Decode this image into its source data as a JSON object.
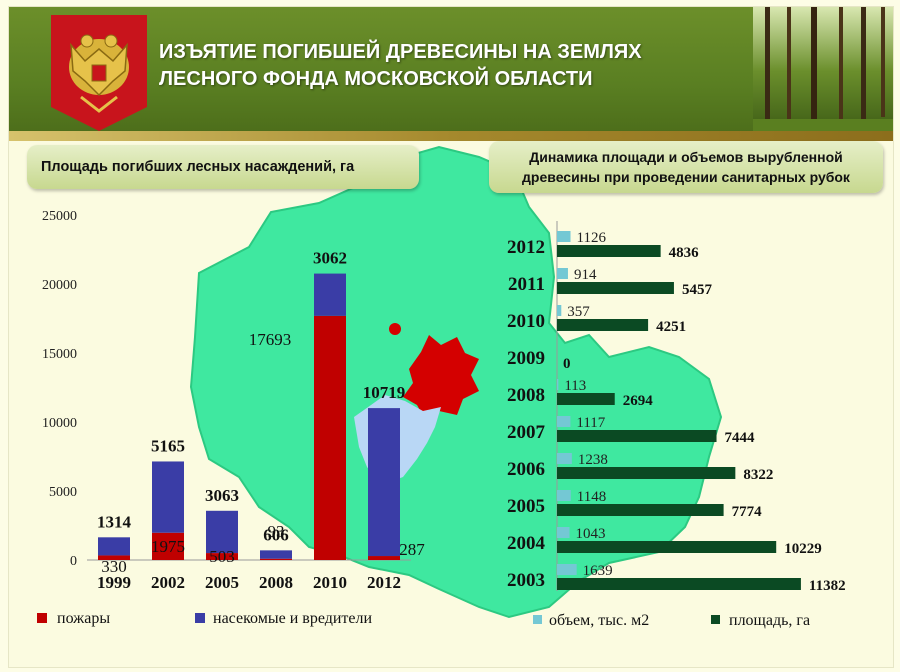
{
  "header": {
    "title_line1": "ИЗЪЯТИЕ ПОГИБШЕЙ ДРЕВЕСИНЫ НА ЗЕМЛЯХ",
    "title_line2": "ЛЕСНОГО ФОНДА МОСКОВСКОЙ ОБЛАСТИ",
    "emblem_icon": "russian-coat-of-arms-icon",
    "photo": "forest-photo"
  },
  "colors": {
    "fires": "#c00000",
    "insects": "#3a3da6",
    "volume": "#74c8d4",
    "area": "#0b4a23",
    "map_fill": "#3fe8a0",
    "moscow_red": "#d40000",
    "moscow_blue": "#b9d7f5"
  },
  "chart_data": [
    {
      "type": "bar",
      "title": "Площадь погибших лесных насаждений, га",
      "categories": [
        "1999",
        "2002",
        "2005",
        "2008",
        "2010",
        "2012"
      ],
      "stacked": true,
      "series": [
        {
          "name": "пожары",
          "values": [
            330,
            1975,
            503,
            93,
            17693,
            287
          ]
        },
        {
          "name": "насекомые и вредители",
          "values": [
            1314,
            5165,
            3063,
            606,
            3062,
            10719
          ]
        }
      ],
      "ylim": [
        0,
        25000
      ],
      "yticks": [
        "0",
        "5000",
        "10000",
        "15000",
        "20000",
        "25000"
      ],
      "legend": "bottom",
      "grid": false
    },
    {
      "type": "bar",
      "orientation": "horizontal",
      "title": "Динамика площади и объемов вырубленной древесины при проведении санитарных рубок",
      "categories": [
        "2012",
        "2011",
        "2010",
        "2009",
        "2008",
        "2007",
        "2006",
        "2005",
        "2004",
        "2003"
      ],
      "series": [
        {
          "name": "объем, тыс. м2",
          "values": [
            1126,
            914,
            357,
            null,
            113,
            1117,
            1238,
            1148,
            1043,
            1639
          ]
        },
        {
          "name": "площадь, га",
          "values": [
            4836,
            5457,
            4251,
            0,
            2694,
            7444,
            8322,
            7774,
            10229,
            11382
          ]
        }
      ],
      "value_labels": {
        "volume": [
          "1126",
          "914",
          "357",
          "",
          "113",
          "1117",
          "1238",
          "1148",
          "1043",
          "1639"
        ],
        "area": [
          "4836",
          "5457",
          "4251",
          "0",
          "2694",
          "7444",
          "8322",
          "7774",
          "10229",
          "11382"
        ]
      },
      "legend": "bottom",
      "grid": false
    }
  ]
}
